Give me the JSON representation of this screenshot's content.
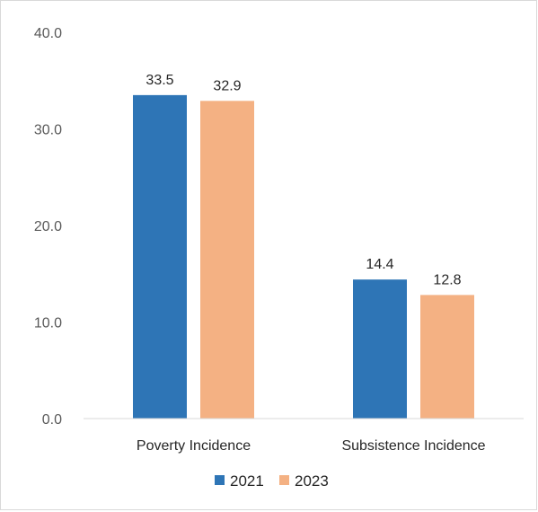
{
  "chart_data": {
    "type": "bar",
    "title": "",
    "xlabel": "",
    "ylabel": "",
    "categories": [
      "Poverty Incidence",
      "Subsistence Incidence"
    ],
    "series": [
      {
        "name": "2021",
        "values": [
          33.5,
          14.4
        ],
        "color": "#2e75b6"
      },
      {
        "name": "2023",
        "values": [
          32.9,
          12.8
        ],
        "color": "#f4b183"
      }
    ],
    "ylim": [
      0,
      40
    ],
    "yticks": [
      "0.0",
      "10.0",
      "20.0",
      "30.0",
      "40.0"
    ],
    "grid": false,
    "legend_position": "bottom",
    "data_labels": true
  }
}
